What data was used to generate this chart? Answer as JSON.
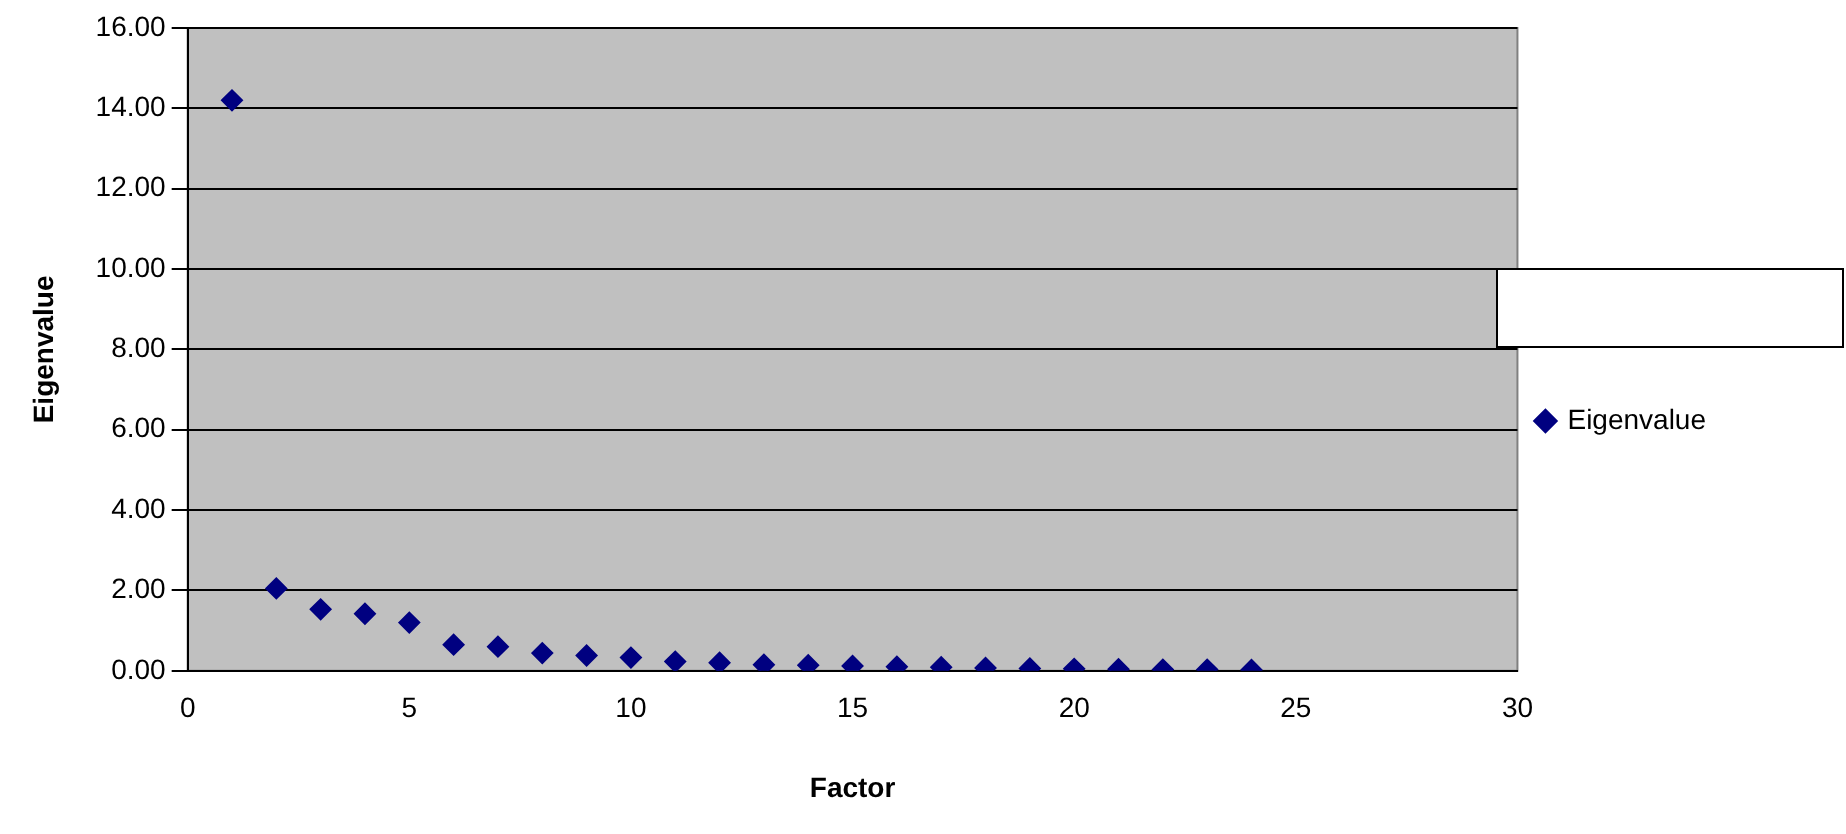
{
  "chart_data": {
    "type": "scatter",
    "xlabel": "Factor",
    "ylabel": "Eigenvalue",
    "x": [
      1,
      2,
      3,
      4,
      5,
      6,
      7,
      8,
      9,
      10,
      11,
      12,
      13,
      14,
      15,
      16,
      17,
      18,
      19,
      20,
      21,
      22,
      23,
      24
    ],
    "series": [
      {
        "name": "Eigenvalue",
        "color": "#000080",
        "values": [
          14.2,
          2.05,
          1.53,
          1.42,
          1.2,
          0.65,
          0.6,
          0.44,
          0.38,
          0.33,
          0.23,
          0.2,
          0.15,
          0.14,
          0.12,
          0.1,
          0.09,
          0.07,
          0.06,
          0.05,
          0.04,
          0.03,
          0.03,
          0.02
        ]
      }
    ],
    "xlim": [
      0,
      30
    ],
    "xticks": [
      0,
      5,
      10,
      15,
      20,
      25,
      30
    ],
    "ylim": [
      0,
      16
    ],
    "yticks": [
      {
        "value": 0,
        "label": "0.00"
      },
      {
        "value": 2,
        "label": "2.00"
      },
      {
        "value": 4,
        "label": "4.00"
      },
      {
        "value": 6,
        "label": "6.00"
      },
      {
        "value": 8,
        "label": "8.00"
      },
      {
        "value": 10,
        "label": "10.00"
      },
      {
        "value": 12,
        "label": "12.00"
      },
      {
        "value": 14,
        "label": "14.00"
      },
      {
        "value": 16,
        "label": "16.00"
      }
    ],
    "grid": "y",
    "legend": "right",
    "marker": "diamond"
  }
}
